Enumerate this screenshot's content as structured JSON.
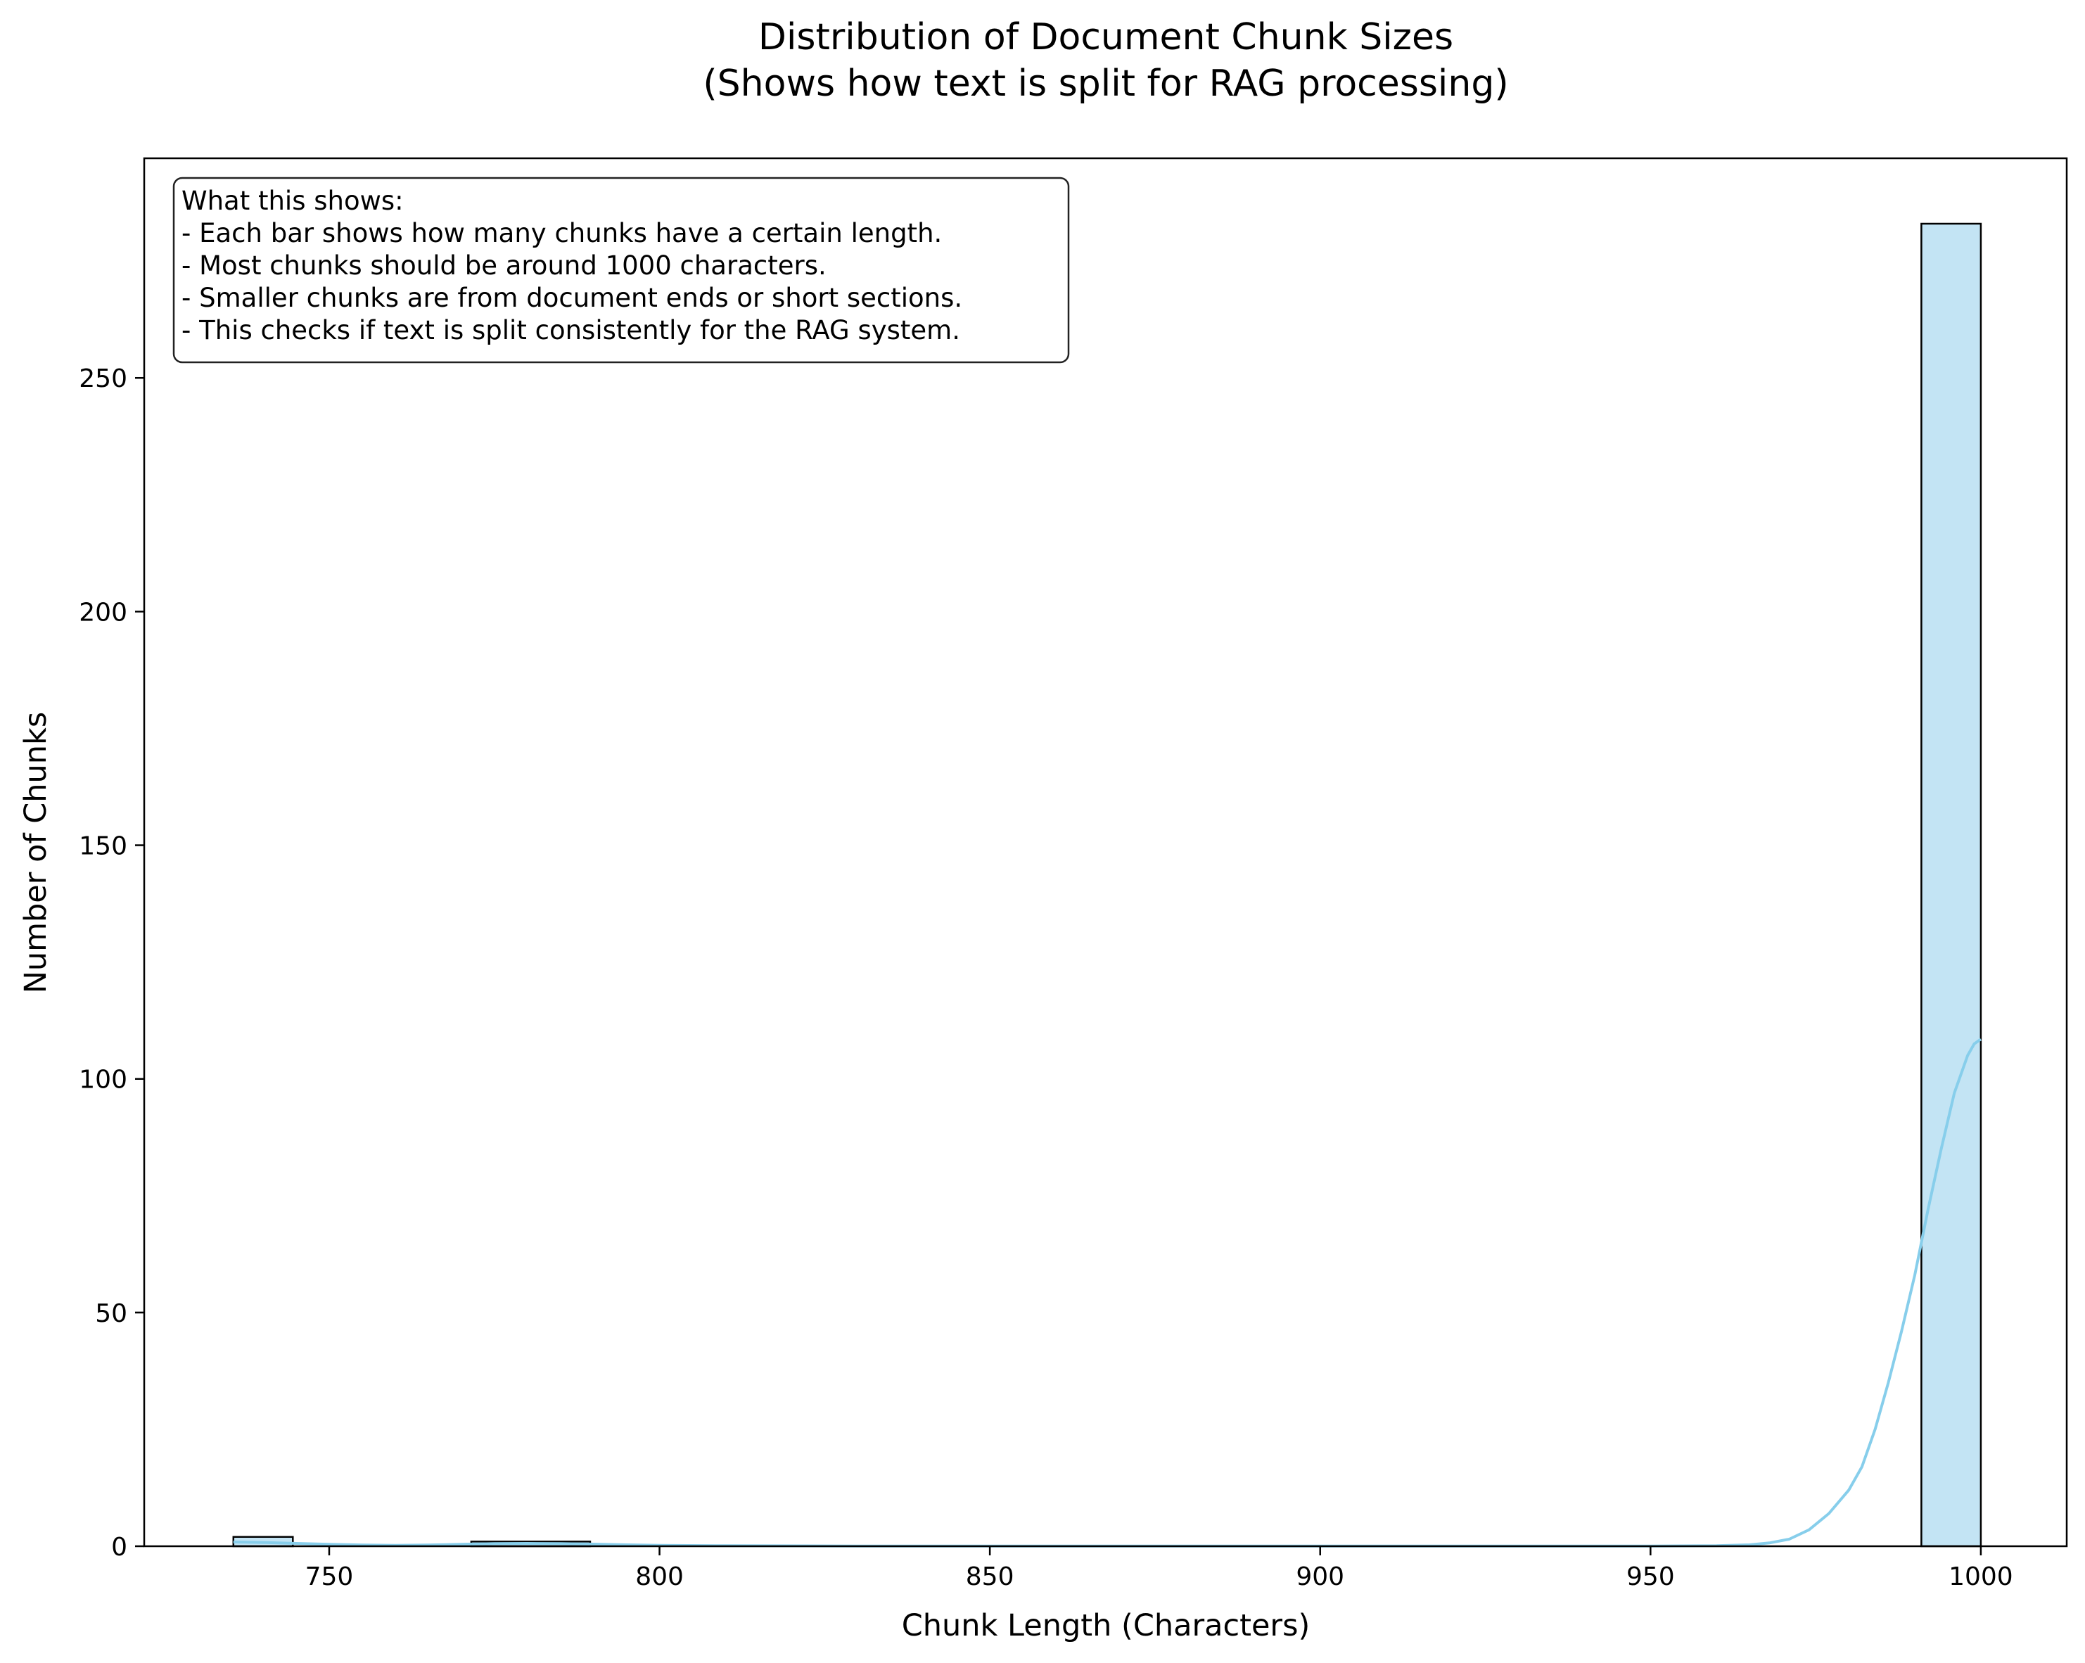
{
  "chart_data": {
    "type": "bar",
    "title": "Distribution of Document Chunk Sizes",
    "subtitle": "(Shows how text is split for RAG processing)",
    "xlabel": "Chunk Length (Characters)",
    "ylabel": "Number of Chunks",
    "xlim": [
      722,
      1013
    ],
    "ylim": [
      0,
      297
    ],
    "xticks": [
      750,
      800,
      850,
      900,
      950,
      1000
    ],
    "yticks": [
      0,
      50,
      100,
      150,
      200,
      250
    ],
    "grid": false,
    "bar_color": "#c3e4f4",
    "edge_color": "#000000",
    "kde_color": "#87ceeb",
    "bins": [
      {
        "x0": 735.5,
        "x1": 744.5,
        "count": 2
      },
      {
        "x0": 771.5,
        "x1": 789.5,
        "count": 1
      },
      {
        "x0": 991.0,
        "x1": 1000.0,
        "count": 283
      }
    ],
    "kde": [
      [
        735.5,
        0.9
      ],
      [
        740,
        0.8
      ],
      [
        745,
        0.6
      ],
      [
        750,
        0.4
      ],
      [
        755,
        0.25
      ],
      [
        760,
        0.2
      ],
      [
        765,
        0.25
      ],
      [
        770,
        0.4
      ],
      [
        775,
        0.55
      ],
      [
        780,
        0.6
      ],
      [
        785,
        0.55
      ],
      [
        790,
        0.45
      ],
      [
        795,
        0.3
      ],
      [
        800,
        0.2
      ],
      [
        810,
        0.1
      ],
      [
        830,
        0.05
      ],
      [
        850,
        0.03
      ],
      [
        900,
        0.03
      ],
      [
        950,
        0.05
      ],
      [
        960,
        0.1
      ],
      [
        965,
        0.3
      ],
      [
        968,
        0.7
      ],
      [
        971,
        1.5
      ],
      [
        974,
        3.5
      ],
      [
        977,
        7
      ],
      [
        980,
        12
      ],
      [
        982,
        17
      ],
      [
        984,
        25
      ],
      [
        986,
        35
      ],
      [
        988,
        46
      ],
      [
        990,
        58
      ],
      [
        992,
        72
      ],
      [
        994,
        85
      ],
      [
        996,
        97
      ],
      [
        998,
        105
      ],
      [
        999,
        107.5
      ],
      [
        1000,
        108.5
      ]
    ],
    "annotation": {
      "lines": [
        "What this shows:",
        "- Each bar shows how many chunks have a certain length.",
        "- Most chunks should be around 1000 characters.",
        "- Smaller chunks are from document ends or short sections.",
        "- This checks if text is split consistently for the RAG system."
      ],
      "placement": "top-left"
    }
  }
}
